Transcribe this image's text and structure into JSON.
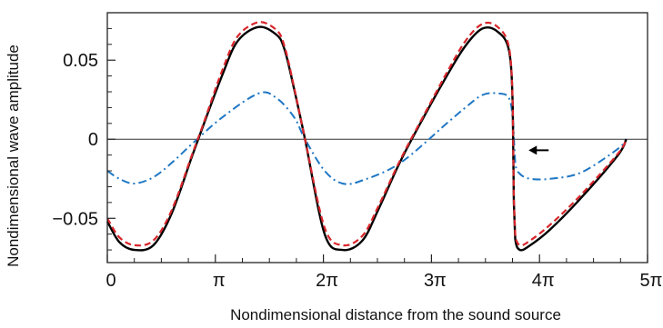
{
  "chart_data": {
    "type": "line",
    "title": "",
    "xlabel": "Nondimensional distance from the sound source",
    "ylabel": "Nondimensional wave amplitude",
    "xlim": [
      0,
      15.708
    ],
    "ylim": [
      -0.078,
      0.08
    ],
    "grid": false,
    "legend": "none",
    "x_ticks": [
      {
        "value": 0,
        "label": "0"
      },
      {
        "value": 3.1416,
        "label": "π"
      },
      {
        "value": 6.2832,
        "label": "2π"
      },
      {
        "value": 9.4248,
        "label": "3π"
      },
      {
        "value": 12.5664,
        "label": "4π"
      },
      {
        "value": 15.708,
        "label": "5π"
      }
    ],
    "y_ticks": [
      {
        "value": 0.05,
        "label": "0.05"
      },
      {
        "value": 0,
        "label": "0"
      },
      {
        "value": -0.05,
        "label": "−0.05"
      }
    ],
    "zero_line": 0,
    "series": [
      {
        "style": "solid",
        "color": "#000000",
        "x": [
          0.0,
          0.35,
          0.79,
          1.34,
          1.87,
          2.46,
          2.83,
          3.35,
          3.79,
          4.4,
          4.92,
          5.15,
          5.43,
          5.75,
          6.32,
          6.84,
          7.42,
          7.89,
          8.52,
          9.2,
          9.87,
          10.41,
          10.91,
          11.35,
          11.68,
          11.79,
          11.82,
          11.86,
          12.0,
          12.3,
          12.88,
          13.78,
          14.85,
          15.09
        ],
        "y": [
          -0.052,
          -0.065,
          -0.07,
          -0.067,
          -0.047,
          -0.011,
          0.011,
          0.041,
          0.062,
          0.071,
          0.066,
          0.057,
          0.032,
          0.0,
          -0.06,
          -0.07,
          -0.064,
          -0.044,
          -0.014,
          0.014,
          0.04,
          0.059,
          0.07,
          0.068,
          0.056,
          0.02,
          -0.04,
          -0.063,
          -0.07,
          -0.067,
          -0.057,
          -0.037,
          -0.01,
          0.0
        ]
      },
      {
        "style": "dashed",
        "color": "#d8262b",
        "x": [
          0.0,
          0.35,
          0.79,
          1.34,
          1.87,
          2.46,
          2.83,
          3.35,
          3.79,
          4.4,
          4.92,
          5.15,
          5.43,
          5.75,
          6.32,
          6.84,
          7.42,
          7.89,
          8.52,
          9.2,
          9.87,
          10.41,
          10.91,
          11.35,
          11.68,
          11.79,
          11.82,
          11.86,
          12.0,
          12.3,
          12.88,
          13.78,
          14.85,
          15.09
        ],
        "y": [
          -0.05,
          -0.062,
          -0.067,
          -0.064,
          -0.045,
          -0.01,
          0.012,
          0.044,
          0.065,
          0.074,
          0.069,
          0.059,
          0.033,
          0.0,
          -0.056,
          -0.067,
          -0.061,
          -0.042,
          -0.013,
          0.015,
          0.042,
          0.062,
          0.073,
          0.071,
          0.058,
          0.021,
          -0.038,
          -0.06,
          -0.067,
          -0.064,
          -0.054,
          -0.035,
          -0.009,
          0.0
        ]
      },
      {
        "style": "dashdot",
        "color": "#1f77c4",
        "x": [
          0.0,
          0.35,
          0.79,
          1.34,
          1.87,
          2.46,
          3.35,
          4.4,
          4.92,
          5.43,
          5.75,
          6.32,
          6.84,
          7.42,
          8.52,
          9.87,
          10.41,
          10.91,
          11.35,
          11.68,
          11.8,
          11.86,
          12.0,
          12.3,
          12.88,
          13.78,
          14.85,
          15.09
        ],
        "y": [
          -0.02,
          -0.025,
          -0.028,
          -0.024,
          -0.015,
          -0.003,
          0.014,
          0.029,
          0.026,
          0.014,
          0.0,
          -0.02,
          -0.028,
          -0.026,
          -0.015,
          0.01,
          0.02,
          0.028,
          0.029,
          0.026,
          0.01,
          -0.015,
          -0.022,
          -0.025,
          -0.025,
          -0.021,
          -0.006,
          0.0
        ]
      }
    ],
    "annotations": [
      {
        "type": "arrow",
        "direction": "left",
        "x": 12.25,
        "y": -0.007,
        "color": "#000000"
      }
    ]
  }
}
